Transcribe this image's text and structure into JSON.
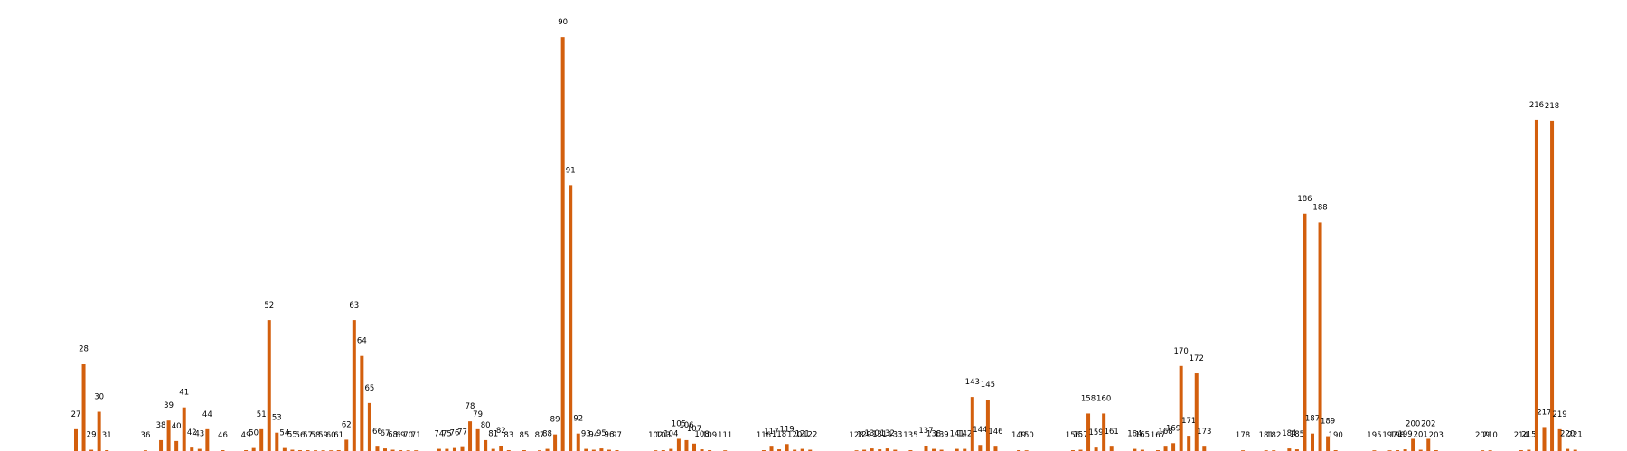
{
  "chart_data": {
    "type": "bar",
    "title": "",
    "xlabel": "",
    "ylabel": "",
    "grid": false,
    "axes_visible": false,
    "ylim": [
      0,
      100
    ],
    "colors": {
      "bar": "#d35f0d",
      "label": "#000000",
      "background": "#ffffff"
    },
    "bars": [
      {
        "x": 27,
        "v": 5.0
      },
      {
        "x": 28,
        "v": 20.0
      },
      {
        "x": 29,
        "v": 0.3
      },
      {
        "x": 30,
        "v": 9.0
      },
      {
        "x": 31,
        "v": 0.2
      },
      {
        "x": 36,
        "v": 0.1
      },
      {
        "x": 38,
        "v": 2.5
      },
      {
        "x": 39,
        "v": 7.0
      },
      {
        "x": 40,
        "v": 2.3
      },
      {
        "x": 41,
        "v": 10.0
      },
      {
        "x": 42,
        "v": 0.8
      },
      {
        "x": 43,
        "v": 0.5
      },
      {
        "x": 44,
        "v": 5.0
      },
      {
        "x": 46,
        "v": 0.2
      },
      {
        "x": 49,
        "v": 0.2
      },
      {
        "x": 50,
        "v": 0.7
      },
      {
        "x": 51,
        "v": 5.0
      },
      {
        "x": 52,
        "v": 30.0
      },
      {
        "x": 53,
        "v": 4.2
      },
      {
        "x": 54,
        "v": 0.7
      },
      {
        "x": 55,
        "v": 0.3
      },
      {
        "x": 56,
        "v": 0.2
      },
      {
        "x": 57,
        "v": 0.2
      },
      {
        "x": 58,
        "v": 0.1
      },
      {
        "x": 59,
        "v": 0.1
      },
      {
        "x": 60,
        "v": 0.1
      },
      {
        "x": 61,
        "v": 0.2
      },
      {
        "x": 62,
        "v": 2.6
      },
      {
        "x": 63,
        "v": 30.0
      },
      {
        "x": 64,
        "v": 21.8
      },
      {
        "x": 65,
        "v": 11.0
      },
      {
        "x": 66,
        "v": 1.0
      },
      {
        "x": 67,
        "v": 0.6
      },
      {
        "x": 68,
        "v": 0.3
      },
      {
        "x": 69,
        "v": 0.2
      },
      {
        "x": 70,
        "v": 0.1
      },
      {
        "x": 71,
        "v": 0.1
      },
      {
        "x": 74,
        "v": 0.5
      },
      {
        "x": 75,
        "v": 0.5
      },
      {
        "x": 76,
        "v": 0.7
      },
      {
        "x": 77,
        "v": 0.9
      },
      {
        "x": 78,
        "v": 6.8
      },
      {
        "x": 79,
        "v": 5.0
      },
      {
        "x": 80,
        "v": 2.5
      },
      {
        "x": 81,
        "v": 0.5
      },
      {
        "x": 82,
        "v": 1.2
      },
      {
        "x": 83,
        "v": 0.2
      },
      {
        "x": 85,
        "v": 0.2
      },
      {
        "x": 87,
        "v": 0.1
      },
      {
        "x": 88,
        "v": 0.5
      },
      {
        "x": 89,
        "v": 3.8
      },
      {
        "x": 90,
        "v": 95.0
      },
      {
        "x": 91,
        "v": 61.0
      },
      {
        "x": 92,
        "v": 4.0
      },
      {
        "x": 93,
        "v": 0.5
      },
      {
        "x": 94,
        "v": 0.3
      },
      {
        "x": 95,
        "v": 0.6
      },
      {
        "x": 96,
        "v": 0.3
      },
      {
        "x": 97,
        "v": 0.2
      },
      {
        "x": 102,
        "v": 0.1
      },
      {
        "x": 103,
        "v": 0.2
      },
      {
        "x": 104,
        "v": 0.5
      },
      {
        "x": 105,
        "v": 2.8
      },
      {
        "x": 106,
        "v": 2.5
      },
      {
        "x": 107,
        "v": 1.7
      },
      {
        "x": 108,
        "v": 0.4
      },
      {
        "x": 109,
        "v": 0.2
      },
      {
        "x": 111,
        "v": 0.1
      },
      {
        "x": 116,
        "v": 0.2
      },
      {
        "x": 117,
        "v": 1.0
      },
      {
        "x": 118,
        "v": 0.4
      },
      {
        "x": 119,
        "v": 1.6
      },
      {
        "x": 120,
        "v": 0.3
      },
      {
        "x": 121,
        "v": 0.5
      },
      {
        "x": 122,
        "v": 0.3
      },
      {
        "x": 128,
        "v": 0.1
      },
      {
        "x": 129,
        "v": 0.3
      },
      {
        "x": 130,
        "v": 0.6
      },
      {
        "x": 131,
        "v": 0.4
      },
      {
        "x": 132,
        "v": 0.6
      },
      {
        "x": 133,
        "v": 0.3
      },
      {
        "x": 135,
        "v": 0.2
      },
      {
        "x": 137,
        "v": 1.2
      },
      {
        "x": 138,
        "v": 0.5
      },
      {
        "x": 139,
        "v": 0.3
      },
      {
        "x": 141,
        "v": 0.5
      },
      {
        "x": 142,
        "v": 0.5
      },
      {
        "x": 143,
        "v": 12.4
      },
      {
        "x": 144,
        "v": 1.4
      },
      {
        "x": 145,
        "v": 11.8
      },
      {
        "x": 146,
        "v": 1.0
      },
      {
        "x": 149,
        "v": 0.2
      },
      {
        "x": 150,
        "v": 0.1
      },
      {
        "x": 156,
        "v": 0.2
      },
      {
        "x": 157,
        "v": 0.3
      },
      {
        "x": 158,
        "v": 8.6
      },
      {
        "x": 159,
        "v": 0.8
      },
      {
        "x": 160,
        "v": 8.6
      },
      {
        "x": 161,
        "v": 1.0
      },
      {
        "x": 164,
        "v": 0.5
      },
      {
        "x": 165,
        "v": 0.3
      },
      {
        "x": 167,
        "v": 0.2
      },
      {
        "x": 168,
        "v": 1.0
      },
      {
        "x": 169,
        "v": 1.8
      },
      {
        "x": 170,
        "v": 19.5
      },
      {
        "x": 171,
        "v": 3.5
      },
      {
        "x": 172,
        "v": 17.8
      },
      {
        "x": 173,
        "v": 1.0
      },
      {
        "x": 178,
        "v": 0.1
      },
      {
        "x": 181,
        "v": 0.1
      },
      {
        "x": 182,
        "v": 0.1
      },
      {
        "x": 184,
        "v": 0.6
      },
      {
        "x": 185,
        "v": 0.4
      },
      {
        "x": 186,
        "v": 54.5
      },
      {
        "x": 187,
        "v": 4.0
      },
      {
        "x": 188,
        "v": 52.5
      },
      {
        "x": 189,
        "v": 3.4
      },
      {
        "x": 190,
        "v": 0.2
      },
      {
        "x": 195,
        "v": 0.1
      },
      {
        "x": 197,
        "v": 0.1
      },
      {
        "x": 198,
        "v": 0.2
      },
      {
        "x": 199,
        "v": 0.4
      },
      {
        "x": 200,
        "v": 2.8
      },
      {
        "x": 201,
        "v": 0.3
      },
      {
        "x": 202,
        "v": 2.8
      },
      {
        "x": 203,
        "v": 0.2
      },
      {
        "x": 209,
        "v": 0.1
      },
      {
        "x": 210,
        "v": 0.1
      },
      {
        "x": 214,
        "v": 0.2
      },
      {
        "x": 215,
        "v": 0.3
      },
      {
        "x": 216,
        "v": 76.0
      },
      {
        "x": 217,
        "v": 5.5
      },
      {
        "x": 218,
        "v": 75.8
      },
      {
        "x": 219,
        "v": 5.0
      },
      {
        "x": 220,
        "v": 0.5
      },
      {
        "x": 221,
        "v": 0.3
      }
    ]
  }
}
